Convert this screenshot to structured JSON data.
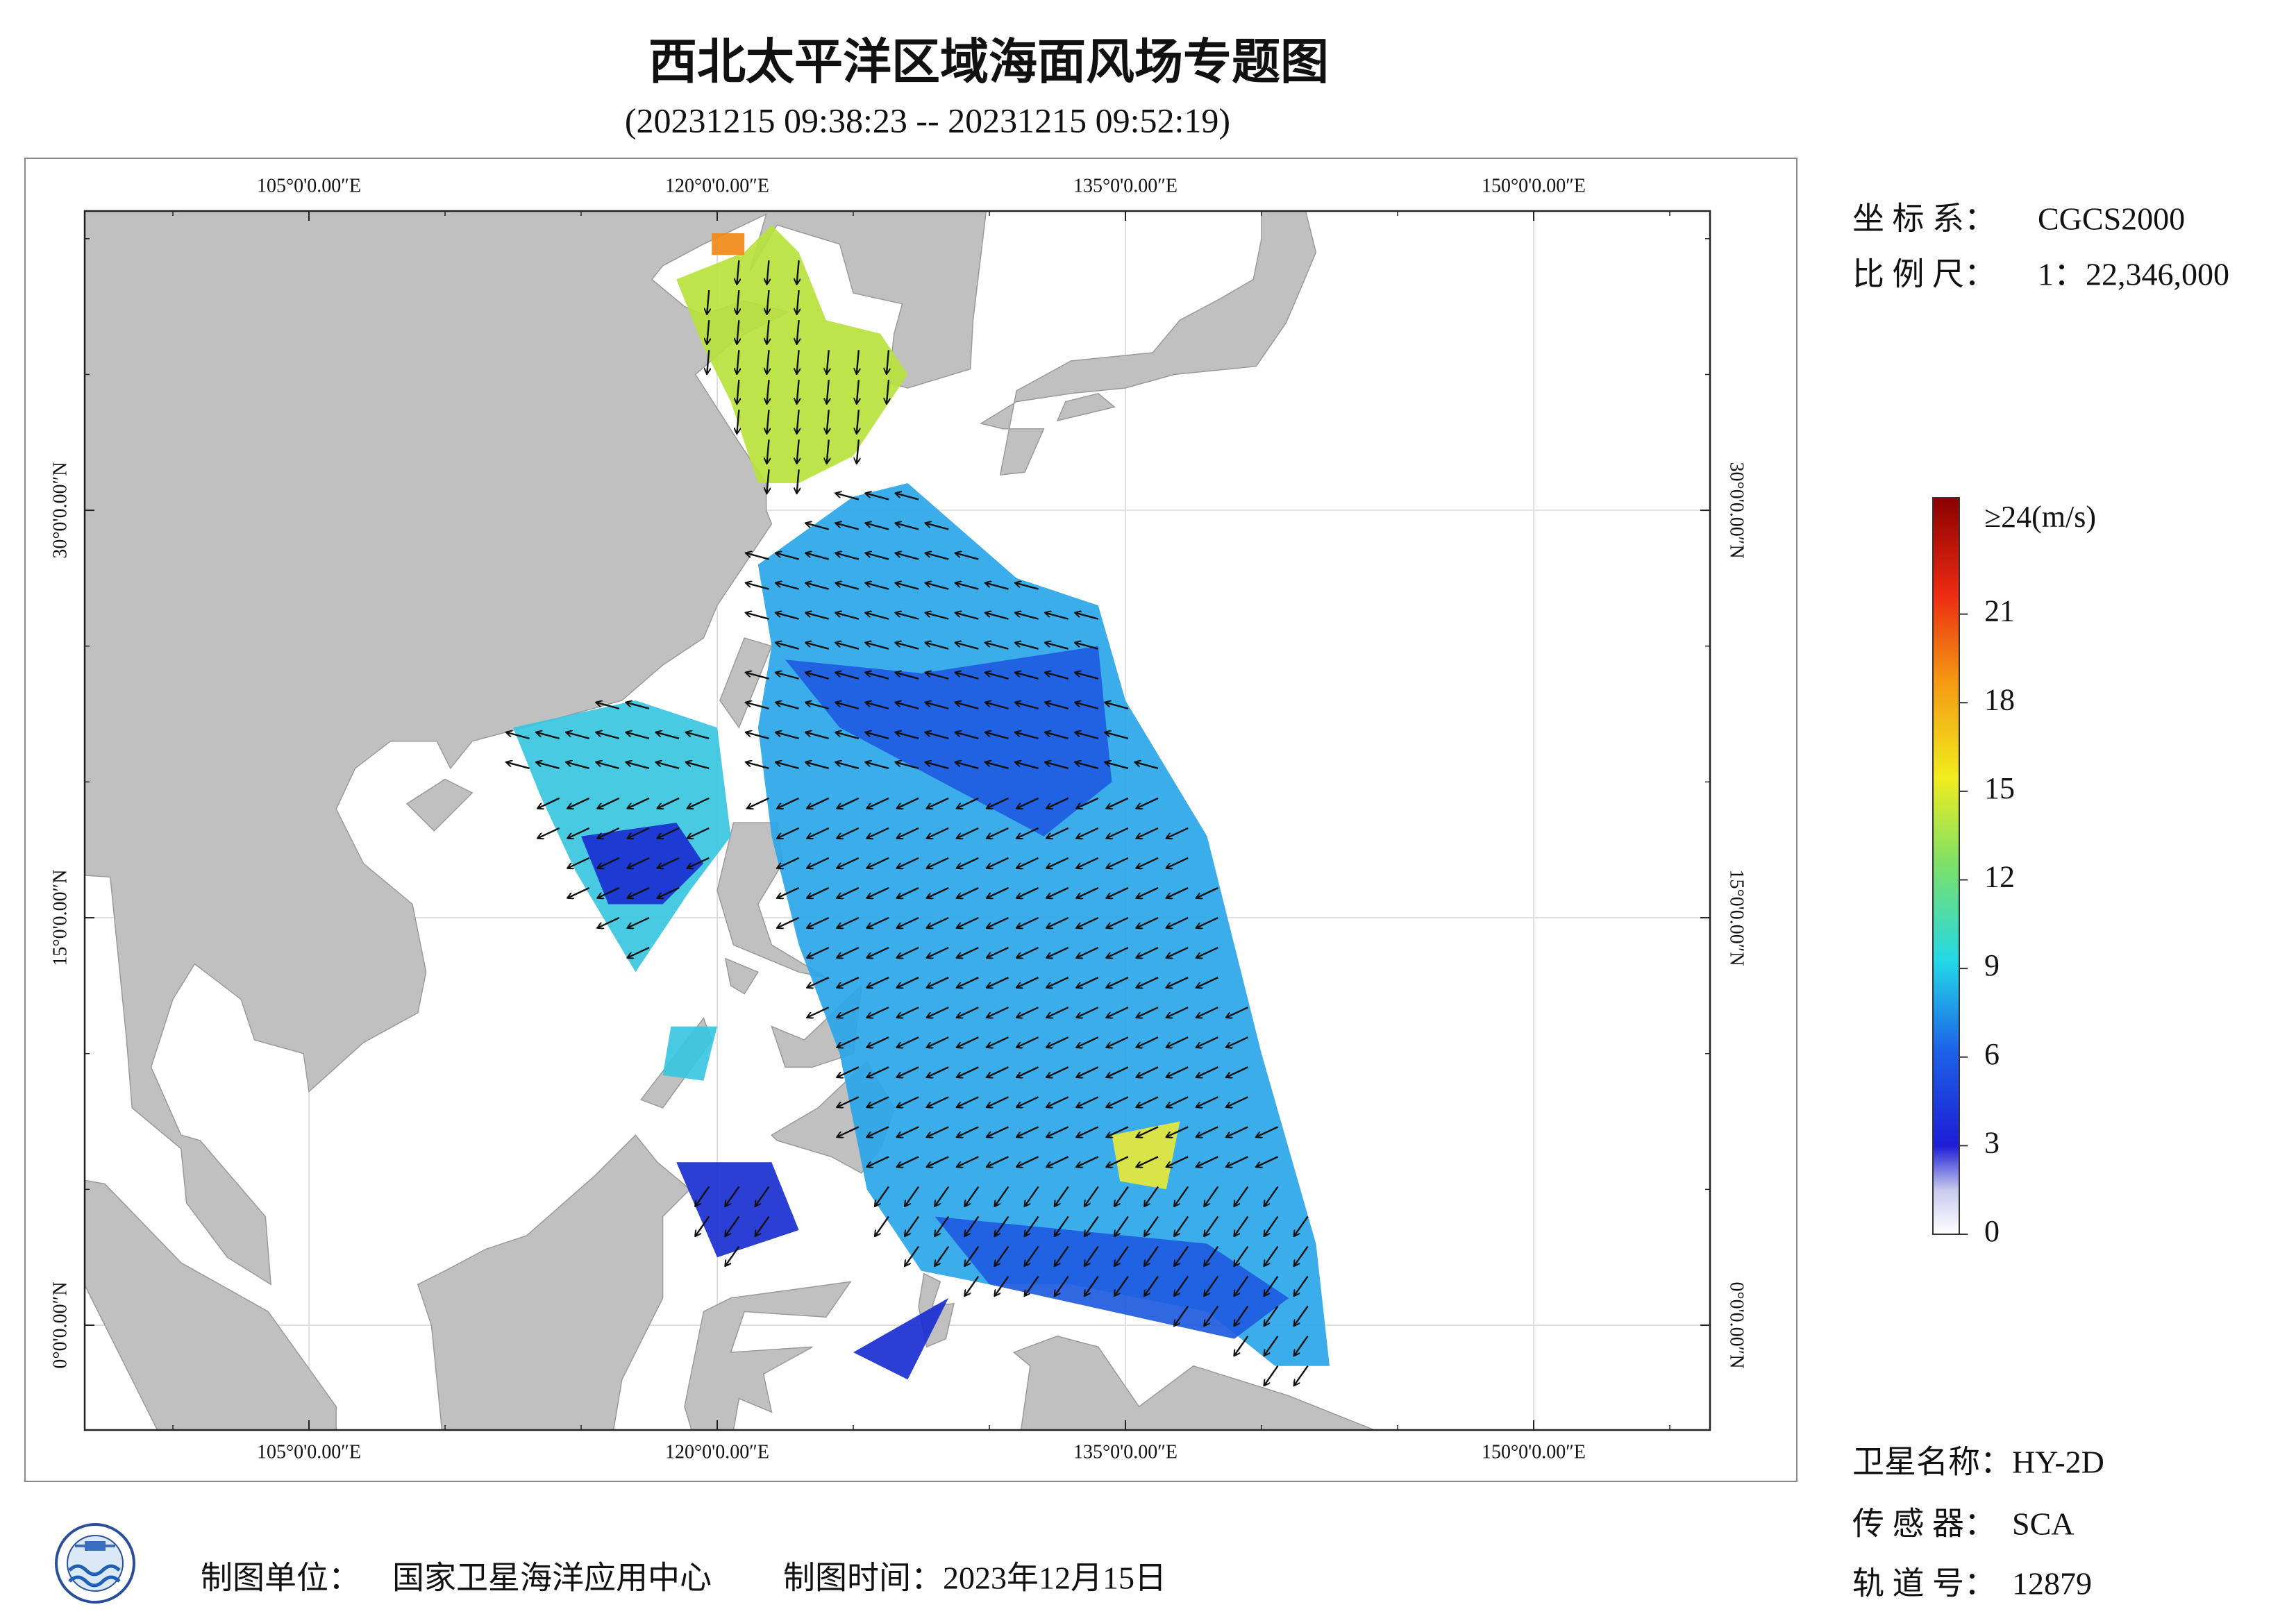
{
  "header": {
    "title": "西北太平洋区域海面风场专题图",
    "subtitle": "(20231215 09:38:23 -- 20231215 09:52:19)"
  },
  "info": {
    "crs_label": "坐 标 系：",
    "crs": "CGCS2000",
    "scale_label": "比 例 尺：",
    "scale": "1：22,346,000",
    "satellite_label": "卫星名称：",
    "satellite": "HY-2D",
    "sensor_label": "传 感 器：",
    "sensor": "SCA",
    "orbit_label": "轨 道 号：",
    "orbit": "12879"
  },
  "map": {
    "lon_labels": [
      "105°0'0.00″E",
      "120°0'0.00″E",
      "135°0'0.00″E",
      "150°0'0.00″E"
    ],
    "lat_labels": [
      "30°0'0.00″N",
      "15°0'0.00″N",
      "0°0'0.00″N"
    ]
  },
  "legend": {
    "top_label": "≥24(m/s)",
    "ticks": [
      0,
      3,
      6,
      9,
      12,
      15,
      18,
      21
    ]
  },
  "footer": {
    "unit_label": "制图单位：",
    "unit": "国家卫星海洋应用中心",
    "time": "制图时间：2023年12月15日"
  }
}
